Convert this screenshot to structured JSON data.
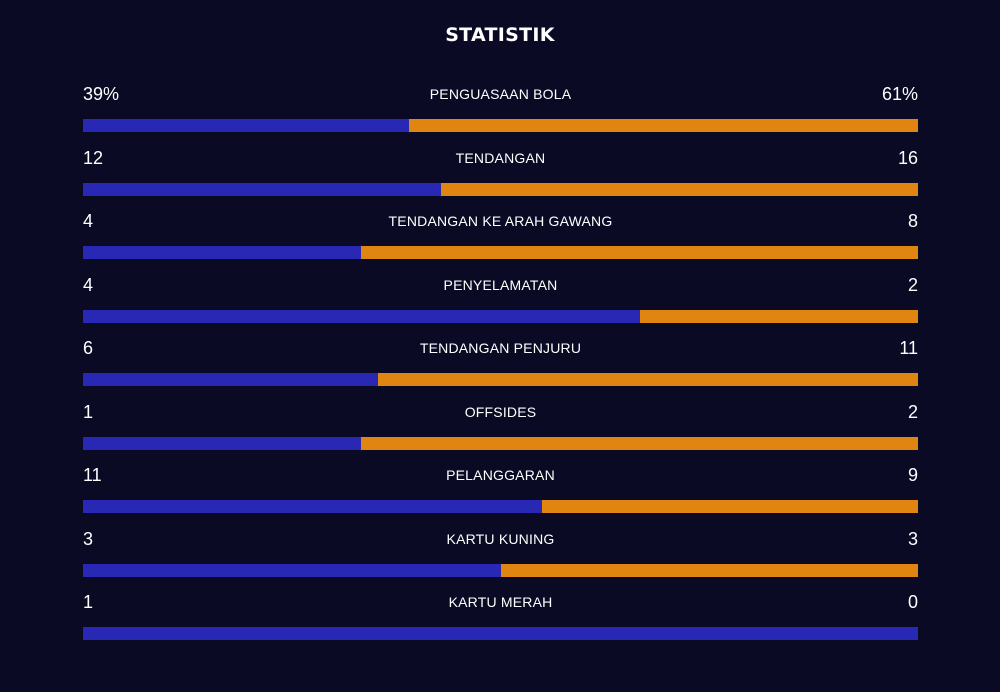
{
  "title": "STATISTIK",
  "colors": {
    "background": "#0a0a24",
    "home": "#2828b4",
    "away": "#e08610",
    "text": "#ffffff"
  },
  "stats": [
    {
      "label": "PENGUASAAN BOLA",
      "home": "39%",
      "away": "61%",
      "home_share": 0.39
    },
    {
      "label": "TENDANGAN",
      "home": "12",
      "away": "16",
      "home_share": 0.4286
    },
    {
      "label": "TENDANGAN KE ARAH GAWANG",
      "home": "4",
      "away": "8",
      "home_share": 0.3333
    },
    {
      "label": "PENYELAMATAN",
      "home": "4",
      "away": "2",
      "home_share": 0.6667
    },
    {
      "label": "TENDANGAN PENJURU",
      "home": "6",
      "away": "11",
      "home_share": 0.3529
    },
    {
      "label": "OFFSIDES",
      "home": "1",
      "away": "2",
      "home_share": 0.3333
    },
    {
      "label": "PELANGGARAN",
      "home": "11",
      "away": "9",
      "home_share": 0.55
    },
    {
      "label": "KARTU KUNING",
      "home": "3",
      "away": "3",
      "home_share": 0.5
    },
    {
      "label": "KARTU MERAH",
      "home": "1",
      "away": "0",
      "home_share": 1.0
    }
  ]
}
